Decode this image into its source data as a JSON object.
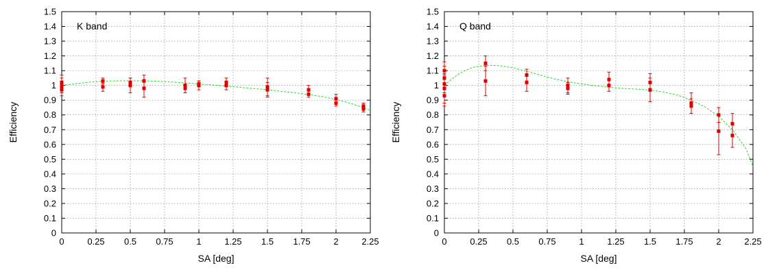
{
  "chart_data": [
    {
      "type": "scatter",
      "title": "",
      "annotation": "K band",
      "xlabel": "SA [deg]",
      "ylabel": "Efficiency",
      "xlim": [
        0,
        2.25
      ],
      "ylim": [
        0,
        1.5
      ],
      "xticks": [
        "0",
        "0.25",
        "0.5",
        "0.75",
        "1",
        "1.25",
        "1.5",
        "1.75",
        "2",
        "2.25"
      ],
      "yticks": [
        "0",
        "0.1",
        "0.2",
        "0.3",
        "0.4",
        "0.5",
        "0.6",
        "0.7",
        "0.8",
        "0.9",
        "1",
        "1.1",
        "1.2",
        "1.3",
        "1.4",
        "1.5"
      ],
      "grid": true,
      "colors": {
        "points": "#dd0000",
        "fit": "#22dd22"
      },
      "series": [
        {
          "kind": "points_with_errorbars",
          "points": [
            {
              "x": 0,
              "y": 1.0,
              "err": 0.05
            },
            {
              "x": 0,
              "y": 0.97,
              "err": 0.04
            },
            {
              "x": 0,
              "y": 1.02,
              "err": 0.05
            },
            {
              "x": 0,
              "y": 0.99,
              "err": 0.04
            },
            {
              "x": 0.3,
              "y": 1.03,
              "err": 0.02
            },
            {
              "x": 0.3,
              "y": 0.99,
              "err": 0.03
            },
            {
              "x": 0.5,
              "y": 1.0,
              "err": 0.05
            },
            {
              "x": 0.5,
              "y": 1.02,
              "err": 0.03
            },
            {
              "x": 0.6,
              "y": 1.03,
              "err": 0.04
            },
            {
              "x": 0.6,
              "y": 0.98,
              "err": 0.06
            },
            {
              "x": 0.9,
              "y": 1.0,
              "err": 0.05
            },
            {
              "x": 0.9,
              "y": 0.98,
              "err": 0.03
            },
            {
              "x": 1.0,
              "y": 1.0,
              "err": 0.03
            },
            {
              "x": 1.0,
              "y": 1.01,
              "err": 0.02
            },
            {
              "x": 1.2,
              "y": 1.02,
              "err": 0.03
            },
            {
              "x": 1.2,
              "y": 1.0,
              "err": 0.03
            },
            {
              "x": 1.5,
              "y": 0.99,
              "err": 0.06
            },
            {
              "x": 1.5,
              "y": 0.97,
              "err": 0.05
            },
            {
              "x": 1.8,
              "y": 0.97,
              "err": 0.03
            },
            {
              "x": 1.8,
              "y": 0.94,
              "err": 0.02
            },
            {
              "x": 2.0,
              "y": 0.91,
              "err": 0.03
            },
            {
              "x": 2.0,
              "y": 0.88,
              "err": 0.02
            },
            {
              "x": 2.2,
              "y": 0.86,
              "err": 0.02
            },
            {
              "x": 2.2,
              "y": 0.84,
              "err": 0.02
            }
          ]
        },
        {
          "kind": "fit",
          "x": [
            0,
            0.1,
            0.2,
            0.3,
            0.4,
            0.5,
            0.6,
            0.7,
            0.8,
            0.9,
            1.0,
            1.1,
            1.2,
            1.3,
            1.4,
            1.5,
            1.6,
            1.7,
            1.8,
            1.9,
            2.0,
            2.1,
            2.2,
            2.25
          ],
          "y": [
            1.0,
            1.012,
            1.022,
            1.028,
            1.031,
            1.032,
            1.031,
            1.028,
            1.023,
            1.017,
            1.01,
            1.003,
            0.995,
            0.987,
            0.979,
            0.97,
            0.96,
            0.95,
            0.938,
            0.924,
            0.905,
            0.88,
            0.85,
            0.83
          ]
        }
      ]
    },
    {
      "type": "scatter",
      "title": "",
      "annotation": "Q band",
      "xlabel": "SA [deg]",
      "ylabel": "Efficiency",
      "xlim": [
        0,
        2.25
      ],
      "ylim": [
        0,
        1.5
      ],
      "xticks": [
        "0",
        "0.25",
        "0.5",
        "0.75",
        "1",
        "1.25",
        "1.5",
        "1.75",
        "2",
        "2.25"
      ],
      "yticks": [
        "0",
        "0.1",
        "0.2",
        "0.3",
        "0.4",
        "0.5",
        "0.6",
        "0.7",
        "0.8",
        "0.9",
        "1",
        "1.1",
        "1.2",
        "1.3",
        "1.4",
        "1.5"
      ],
      "grid": true,
      "colors": {
        "points": "#dd0000",
        "fit": "#22dd22"
      },
      "series": [
        {
          "kind": "points_with_errorbars",
          "points": [
            {
              "x": 0,
              "y": 1.1,
              "err": 0.06
            },
            {
              "x": 0,
              "y": 1.05,
              "err": 0.08
            },
            {
              "x": 0,
              "y": 0.98,
              "err": 0.1
            },
            {
              "x": 0,
              "y": 0.93,
              "err": 0.07
            },
            {
              "x": 0,
              "y": 1.01,
              "err": 0.06
            },
            {
              "x": 0.3,
              "y": 1.15,
              "err": 0.05
            },
            {
              "x": 0.3,
              "y": 1.03,
              "err": 0.1
            },
            {
              "x": 0.6,
              "y": 1.07,
              "err": 0.04
            },
            {
              "x": 0.6,
              "y": 1.02,
              "err": 0.06
            },
            {
              "x": 0.9,
              "y": 1.0,
              "err": 0.05
            },
            {
              "x": 0.9,
              "y": 0.98,
              "err": 0.04
            },
            {
              "x": 1.2,
              "y": 1.04,
              "err": 0.05
            },
            {
              "x": 1.2,
              "y": 1.0,
              "err": 0.04
            },
            {
              "x": 1.5,
              "y": 1.02,
              "err": 0.06
            },
            {
              "x": 1.5,
              "y": 0.97,
              "err": 0.08
            },
            {
              "x": 1.8,
              "y": 0.88,
              "err": 0.07
            },
            {
              "x": 1.8,
              "y": 0.86,
              "err": 0.05
            },
            {
              "x": 2.0,
              "y": 0.8,
              "err": 0.05
            },
            {
              "x": 2.0,
              "y": 0.69,
              "err": 0.16
            },
            {
              "x": 2.1,
              "y": 0.74,
              "err": 0.07
            },
            {
              "x": 2.1,
              "y": 0.66,
              "err": 0.08
            }
          ]
        },
        {
          "kind": "fit",
          "x": [
            0,
            0.05,
            0.1,
            0.15,
            0.2,
            0.25,
            0.3,
            0.35,
            0.4,
            0.5,
            0.6,
            0.7,
            0.8,
            0.9,
            1.0,
            1.1,
            1.2,
            1.3,
            1.4,
            1.5,
            1.6,
            1.7,
            1.8,
            1.9,
            2.0,
            2.1,
            2.2,
            2.25
          ],
          "y": [
            1.0,
            1.04,
            1.075,
            1.1,
            1.12,
            1.13,
            1.135,
            1.136,
            1.134,
            1.12,
            1.095,
            1.07,
            1.045,
            1.025,
            1.01,
            0.998,
            0.988,
            0.98,
            0.975,
            0.968,
            0.955,
            0.935,
            0.9,
            0.855,
            0.79,
            0.7,
            0.57,
            0.45
          ]
        }
      ]
    }
  ]
}
